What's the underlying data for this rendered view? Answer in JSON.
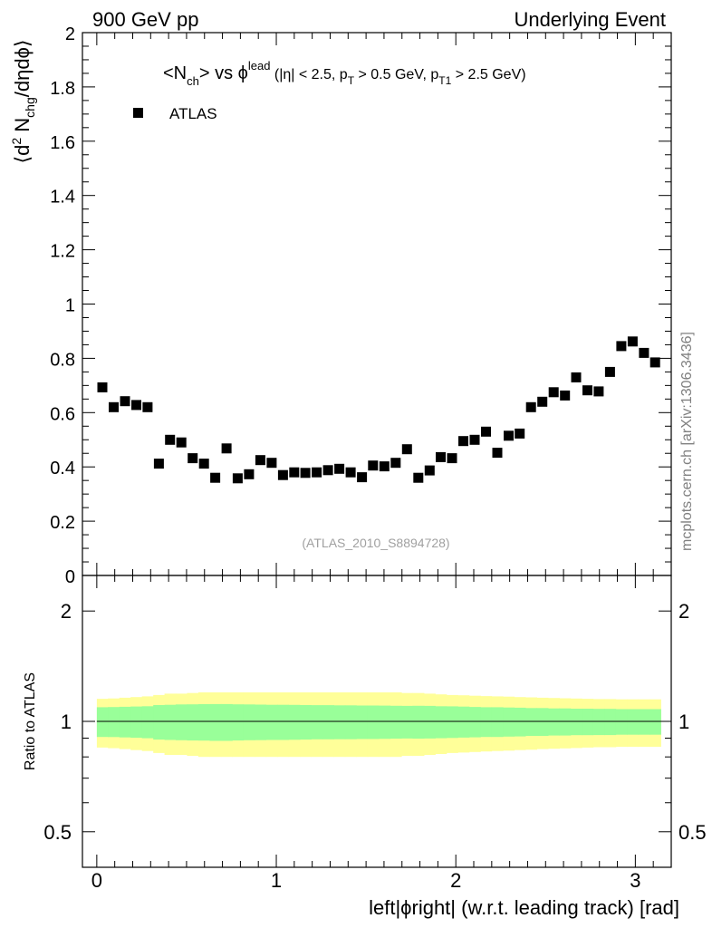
{
  "header": {
    "left": "900 GeV pp",
    "right": "Underlying Event"
  },
  "top_panel": {
    "ylabel": "⟨d² N_chg/dηdϕ⟩",
    "ylabel_parts": {
      "pre": "⟨d",
      "sup": "2",
      "mid": " N",
      "sub": "chg",
      "post": "/dηdϕ⟩"
    },
    "title_parts": {
      "n": "<N",
      "n_sub": "ch",
      "vs": "> vs ϕ",
      "lead_sup": "lead",
      "cut1": " (|η| < 2.5, p",
      "cut1_sub": "T",
      "cut2": " > 0.5 GeV, p",
      "cut2_sub": "T1",
      "cut3": " > 2.5 GeV)"
    },
    "legend_label": "ATLAS",
    "analysis_tag": "(ATLAS_2010_S8894728)",
    "yticks": [
      "0",
      "0.2",
      "0.4",
      "0.6",
      "0.8",
      "1",
      "1.2",
      "1.4",
      "1.6",
      "1.8",
      "2"
    ]
  },
  "bottom_panel": {
    "ylabel": "Ratio to ATLAS",
    "yticks_left": [
      "0.5",
      "1",
      "2"
    ],
    "yticks_right": [
      "0.5",
      "1",
      "2"
    ]
  },
  "xaxis": {
    "label": "left|ϕright| (w.r.t. leading track) [rad]",
    "ticks": [
      "0",
      "1",
      "2",
      "3"
    ]
  },
  "watermark": "mcplots.cern.ch [arXiv:1306.3436]",
  "colors": {
    "marker": "#000000",
    "band_inner": "#99ff99",
    "band_outer": "#ffff99",
    "analysis_tag": "#a0a0a0",
    "watermark": "#808080"
  },
  "chart_data": {
    "type": "scatter",
    "title": "<Nch> vs ϕlead (|η| < 2.5, pT > 0.5 GeV, pT1 > 2.5 GeV)",
    "xlabel": "left|ϕright| (w.r.t. leading track) [rad]",
    "ylabel": "⟨d² N_chg/dηdϕ⟩",
    "xlim": [
      -0.08,
      3.2
    ],
    "ylim": [
      0,
      2
    ],
    "ratio_ylim": [
      0.4,
      2.5
    ],
    "series": [
      {
        "name": "ATLAS",
        "x": [
          0.031,
          0.094,
          0.157,
          0.22,
          0.283,
          0.346,
          0.408,
          0.471,
          0.534,
          0.597,
          0.66,
          0.723,
          0.785,
          0.848,
          0.911,
          0.974,
          1.037,
          1.1,
          1.162,
          1.225,
          1.288,
          1.351,
          1.414,
          1.477,
          1.539,
          1.602,
          1.665,
          1.728,
          1.791,
          1.854,
          1.916,
          1.979,
          2.042,
          2.105,
          2.168,
          2.231,
          2.294,
          2.356,
          2.419,
          2.482,
          2.545,
          2.608,
          2.67,
          2.733,
          2.796,
          2.859,
          2.922,
          2.985,
          3.048,
          3.11
        ],
        "values": [
          0.693,
          0.62,
          0.642,
          0.628,
          0.62,
          0.412,
          0.5,
          0.49,
          0.432,
          0.412,
          0.36,
          0.468,
          0.358,
          0.373,
          0.425,
          0.415,
          0.37,
          0.38,
          0.378,
          0.38,
          0.388,
          0.393,
          0.38,
          0.362,
          0.405,
          0.402,
          0.415,
          0.465,
          0.36,
          0.387,
          0.436,
          0.432,
          0.495,
          0.5,
          0.53,
          0.452,
          0.515,
          0.523,
          0.62,
          0.64,
          0.675,
          0.663,
          0.73,
          0.682,
          0.678,
          0.75,
          0.845,
          0.862,
          0.82,
          0.785
        ]
      }
    ],
    "ratio": {
      "reference": 1.0,
      "inner_band_rel": [
        0.093,
        0.094,
        0.096,
        0.098,
        0.1,
        0.108,
        0.11,
        0.112,
        0.113,
        0.114,
        0.115,
        0.115,
        0.113,
        0.112,
        0.111,
        0.11,
        0.11,
        0.109,
        0.108,
        0.107,
        0.107,
        0.106,
        0.106,
        0.105,
        0.105,
        0.104,
        0.103,
        0.102,
        0.103,
        0.102,
        0.1,
        0.099,
        0.097,
        0.095,
        0.093,
        0.093,
        0.091,
        0.09,
        0.087,
        0.087,
        0.085,
        0.085,
        0.083,
        0.083,
        0.082,
        0.082,
        0.08,
        0.08,
        0.08,
        0.08
      ],
      "outer_band_rel": [
        0.152,
        0.155,
        0.16,
        0.165,
        0.17,
        0.18,
        0.19,
        0.19,
        0.195,
        0.2,
        0.2,
        0.2,
        0.2,
        0.2,
        0.2,
        0.2,
        0.2,
        0.2,
        0.2,
        0.2,
        0.2,
        0.2,
        0.2,
        0.2,
        0.2,
        0.2,
        0.2,
        0.195,
        0.195,
        0.19,
        0.185,
        0.18,
        0.178,
        0.175,
        0.172,
        0.17,
        0.168,
        0.165,
        0.163,
        0.16,
        0.158,
        0.156,
        0.154,
        0.152,
        0.15,
        0.15,
        0.148,
        0.148,
        0.148,
        0.148
      ]
    }
  }
}
